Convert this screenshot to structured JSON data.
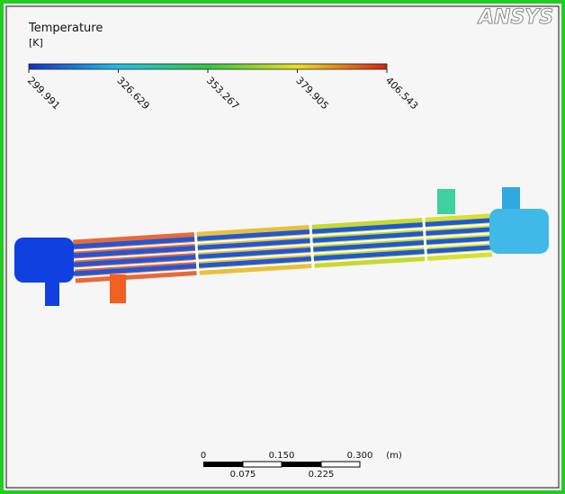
{
  "logo": "ANSYS",
  "legend": {
    "title": "Temperature",
    "unit": "[K]",
    "ticks": [
      "299.991",
      "326.629",
      "353.267",
      "379.905",
      "406.543"
    ]
  },
  "scale_bar": {
    "top_labels": [
      "0",
      "0.150",
      "0.300"
    ],
    "unit": "(m)",
    "bottom_labels": [
      "0.075",
      "0.225"
    ]
  }
}
